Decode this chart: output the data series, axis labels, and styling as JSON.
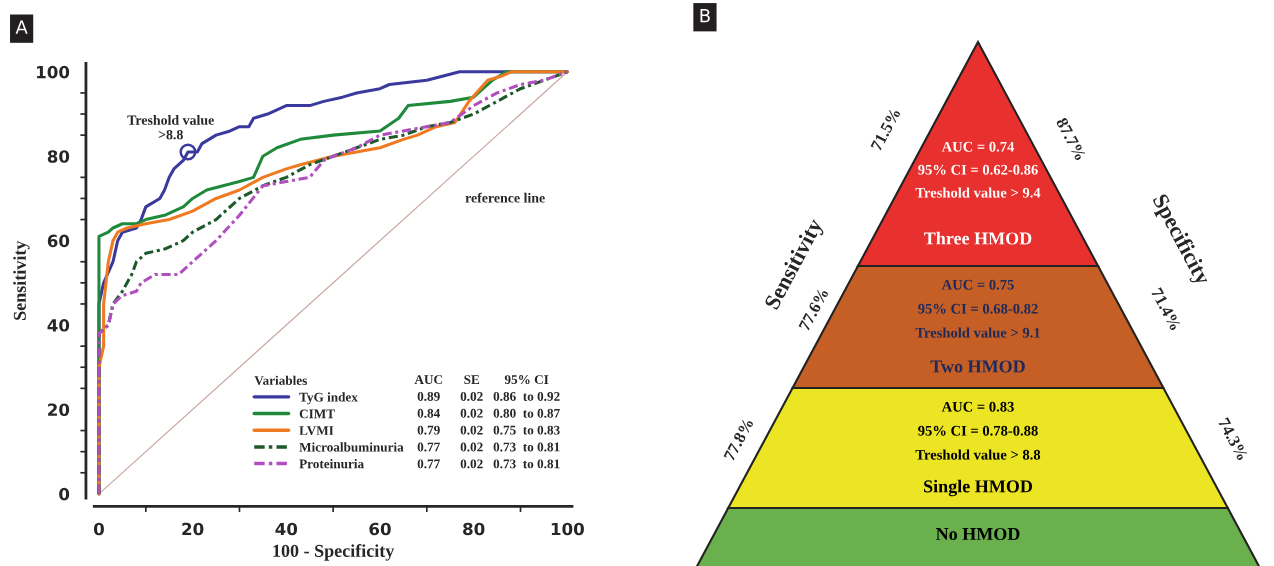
{
  "chart_data": [
    {
      "type": "line",
      "title": "A",
      "xlabel": "100 - Specificity",
      "ylabel": "Sensitivity",
      "xlim": [
        -1,
        101
      ],
      "ylim": [
        -1,
        102
      ],
      "xticks": [
        0,
        {
          "value": 10,
          "label": null
        },
        20,
        {
          "value": 30,
          "label": null
        },
        40,
        {
          "value": 50,
          "label": null
        },
        60,
        {
          "value": 70,
          "label": null
        },
        80,
        {
          "value": 90,
          "label": null
        },
        100
      ],
      "yticks": [
        0,
        {
          "value": 5,
          "label": null
        },
        {
          "value": 10,
          "label": null
        },
        {
          "value": 15,
          "label": null
        },
        20,
        {
          "value": 25,
          "label": null
        },
        {
          "value": 30,
          "label": null
        },
        {
          "value": 35,
          "label": null
        },
        40,
        {
          "value": 45,
          "label": null
        },
        {
          "value": 50,
          "label": null
        },
        {
          "value": 55,
          "label": null
        },
        60,
        {
          "value": 65,
          "label": null
        },
        {
          "value": 70,
          "label": null
        },
        {
          "value": 75,
          "label": null
        },
        80,
        {
          "value": 85,
          "label": null
        },
        {
          "value": 90,
          "label": null
        },
        {
          "value": 95,
          "label": null
        },
        100
      ],
      "grid": false,
      "legend": "bottom right",
      "legend_title": "Variables",
      "series": [
        {
          "type": "line",
          "color": "#c9a9a3",
          "line_style": "solid",
          "x": [
            0,
            100
          ],
          "values": [
            0,
            100
          ]
        },
        {
          "type": "line",
          "name": "TyG index",
          "color": "#3a3a9e",
          "line_style": "solid",
          "x": [
            0,
            0,
            1,
            3,
            4,
            5,
            8,
            9,
            10,
            13,
            14,
            15,
            16,
            18,
            19,
            21,
            22,
            25,
            28,
            30,
            32,
            33,
            36,
            38,
            40,
            45,
            48,
            52,
            55,
            60,
            62,
            70,
            77,
            100
          ],
          "values": [
            0,
            45,
            50,
            55,
            60,
            62,
            63,
            65,
            68,
            70,
            72,
            75,
            77,
            79,
            81,
            81,
            83,
            85,
            86,
            87,
            87,
            89,
            90,
            91,
            92,
            92,
            93,
            94,
            95,
            96,
            97,
            98,
            100,
            100
          ]
        },
        {
          "type": "line",
          "name": "CIMT",
          "color": "#1f8a3c",
          "line_style": "solid",
          "x": [
            0,
            0,
            2,
            3,
            5,
            8,
            10,
            14,
            18,
            20,
            23,
            30,
            33,
            35,
            38,
            43,
            50,
            60,
            64,
            66,
            75,
            80,
            82,
            84,
            87,
            100
          ],
          "values": [
            0,
            61,
            62,
            63,
            64,
            64,
            65,
            66,
            68,
            70,
            72,
            74,
            75,
            80,
            82,
            84,
            85,
            86,
            89,
            92,
            93,
            94,
            96,
            98,
            100,
            100
          ]
        },
        {
          "type": "line",
          "name": "LVMI",
          "color": "#f07a22",
          "line_style": "solid",
          "x": [
            0,
            0,
            1,
            1,
            2,
            3,
            4,
            6,
            10,
            15,
            20,
            25,
            30,
            35,
            40,
            43,
            50,
            55,
            60,
            65,
            68,
            72,
            76,
            79,
            83,
            86,
            88,
            100
          ],
          "values": [
            0,
            30,
            35,
            45,
            55,
            60,
            62,
            63,
            64,
            65,
            67,
            70,
            72,
            75,
            77,
            78,
            80,
            81,
            82,
            84,
            85,
            87,
            88,
            93,
            98,
            99,
            100,
            100
          ]
        },
        {
          "type": "line",
          "name": "Microalbuminuria",
          "color": "#1d5a2a",
          "line_style": "dashed",
          "x": [
            0,
            0,
            2,
            3,
            5,
            7,
            8,
            10,
            14,
            18,
            20,
            25,
            30,
            35,
            40,
            45,
            50,
            55,
            60,
            65,
            70,
            75,
            80,
            85,
            90,
            95,
            100
          ],
          "values": [
            0,
            38,
            40,
            45,
            48,
            52,
            55,
            57,
            58,
            60,
            62,
            65,
            70,
            73,
            75,
            78,
            80,
            82,
            84,
            85,
            87,
            88,
            90,
            93,
            96,
            98,
            100
          ]
        },
        {
          "type": "line",
          "name": "Proteinuria",
          "color": "#b04fc0",
          "line_style": "dashed",
          "x": [
            0,
            0,
            2,
            3,
            5,
            8,
            9,
            12,
            17,
            20,
            25,
            30,
            35,
            40,
            45,
            48,
            50,
            55,
            60,
            65,
            70,
            75,
            80,
            85,
            90,
            95,
            100
          ],
          "values": [
            0,
            38,
            40,
            45,
            47,
            48,
            50,
            52,
            52,
            55,
            60,
            66,
            73,
            74,
            75,
            79,
            80,
            82,
            85,
            86,
            87,
            88,
            92,
            95,
            97,
            98,
            100
          ]
        },
        {
          "type": "scatter",
          "color": "#3a3a9e",
          "marker": "circle",
          "x": [
            19
          ],
          "values": [
            81
          ]
        }
      ],
      "annotations": [
        "Treshold value\n>8.8",
        "reference line",
        "AUC",
        "SE",
        "95% CI",
        "0.89",
        "0.02",
        "0.86  to 0.92",
        "0.84",
        "0.02",
        "0.80  to 0.87",
        "0.79",
        "0.02",
        "0.75  to 0.83",
        "0.77",
        "0.02",
        "0.73  to 0.81",
        "0.77",
        "0.02",
        "0.73  to 0.81"
      ]
    },
    {
      "type": "other",
      "title": "B",
      "categories": [
        "Three HMOD",
        "Two HMOD",
        "Single HMOD",
        "No HMOD"
      ],
      "colors": [
        "#e8302e",
        "#c55f26",
        "#ece524",
        "#6ab04c"
      ],
      "series": [
        {
          "name": "Sensitivity",
          "values": [
            71.5,
            77.6,
            77.8,
            null
          ],
          "value_labels": [
            "71.5%",
            "77.6%",
            "77.8%",
            null
          ]
        },
        {
          "name": "Specificity",
          "values": [
            87.7,
            71.4,
            74.3,
            null
          ],
          "value_labels": [
            "87.7%",
            "71.4%",
            "74.3%",
            null
          ]
        }
      ],
      "annotations": [
        "AUC = 0.74",
        "95% CI = 0.62-0.86",
        "Treshold value > 9.4",
        "AUC = 0.75",
        "95% CI = 0.68-0.82",
        "Treshold value > 9.1",
        "AUC = 0.83",
        "95% CI = 0.78-0.88",
        "Treshold value > 8.8"
      ]
    }
  ]
}
